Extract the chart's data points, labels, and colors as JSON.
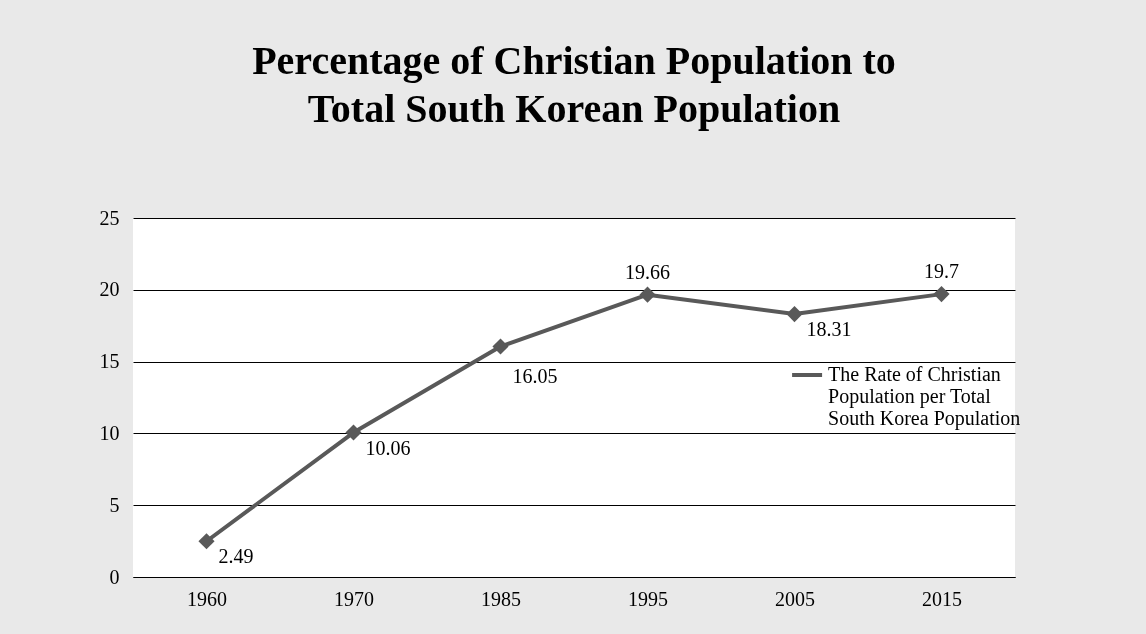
{
  "chart_data": {
    "type": "line",
    "title": "Percentage of Christian Population to Total South Korean Population",
    "categories": [
      "1960",
      "1970",
      "1985",
      "1995",
      "2005",
      "2015"
    ],
    "series": [
      {
        "name": "The Rate of Christian Population per Total South Korea Population",
        "color": "#595959",
        "values": [
          2.49,
          10.06,
          16.05,
          19.66,
          18.31,
          19.7
        ]
      }
    ],
    "ylim": [
      0,
      25
    ],
    "yticks": [
      0,
      5,
      10,
      15,
      20,
      25
    ],
    "grid": "y",
    "legend": "right",
    "marker": "diamond",
    "line_style": "solid",
    "data_labels": true
  }
}
